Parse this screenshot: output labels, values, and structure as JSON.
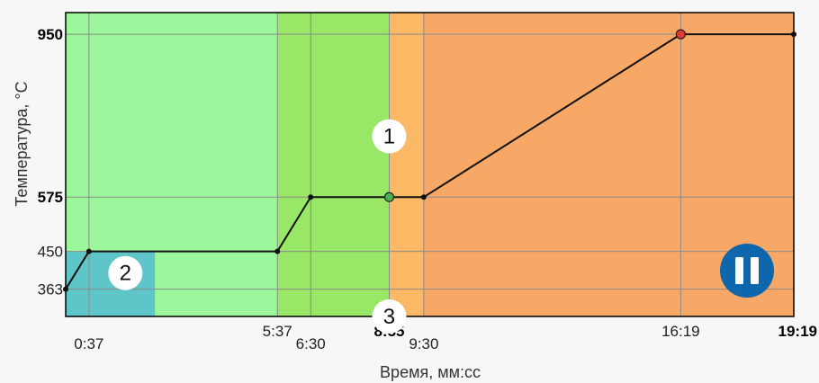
{
  "chart_data": {
    "type": "line",
    "title": "",
    "xlabel": "Время, мм:сс",
    "ylabel": "Температура, °C",
    "xlim": [
      0,
      1159
    ],
    "ylim": [
      300,
      1000
    ],
    "x_ticks": [
      {
        "value": 37,
        "label": "0:37",
        "bold": false,
        "row": 2
      },
      {
        "value": 337,
        "label": "5:37",
        "bold": false,
        "row": 1
      },
      {
        "value": 390,
        "label": "6:30",
        "bold": false,
        "row": 2
      },
      {
        "value": 515,
        "label": "8:35",
        "bold": true,
        "row": 1
      },
      {
        "value": 570,
        "label": "9:30",
        "bold": false,
        "row": 2
      },
      {
        "value": 979,
        "label": "16:19",
        "bold": false,
        "row": 1
      },
      {
        "value": 1159,
        "label": "19:19",
        "bold": true,
        "row": 1
      }
    ],
    "y_ticks": [
      {
        "value": 363,
        "label": "363"
      },
      {
        "value": 450,
        "label": "450"
      },
      {
        "value": 575,
        "label": "575",
        "bold": true
      },
      {
        "value": 950,
        "label": "950",
        "bold": true
      }
    ],
    "series": [
      {
        "values": [
          {
            "x": 0,
            "y": 363
          },
          {
            "x": 37,
            "y": 450
          },
          {
            "x": 337,
            "y": 450
          },
          {
            "x": 390,
            "y": 575
          },
          {
            "x": 515,
            "y": 575
          },
          {
            "x": 570,
            "y": 575
          },
          {
            "x": 979,
            "y": 950
          },
          {
            "x": 1159,
            "y": 950
          }
        ]
      }
    ],
    "highlight_points": [
      {
        "x": 515,
        "y": 575,
        "color": "#4caf50"
      },
      {
        "x": 979,
        "y": 950,
        "color": "#e53935"
      }
    ],
    "zones": [
      {
        "from": 0,
        "to": 337,
        "color": "#9cf69b"
      },
      {
        "from": 337,
        "to": 515,
        "color": "#99e766"
      },
      {
        "from": 515,
        "to": 570,
        "color": "#fbb966"
      },
      {
        "from": 570,
        "to": 1159,
        "color": "#f8a866"
      }
    ],
    "box": {
      "x_from": 0,
      "x_to": 142,
      "y_from": 300,
      "y_to": 450,
      "color": "#5ec6c8"
    },
    "markers": [
      {
        "label": "1",
        "x": 515,
        "y": 715
      },
      {
        "label": "2",
        "x": 95,
        "y": 400
      },
      {
        "label": "3",
        "x": 515,
        "y": 300
      }
    ],
    "grid": true,
    "colors": {
      "line": "#111111",
      "grid": "#8a8a8a",
      "pause_button": "#0e66ad"
    },
    "pause_button": {
      "icon": "pause-icon"
    }
  }
}
